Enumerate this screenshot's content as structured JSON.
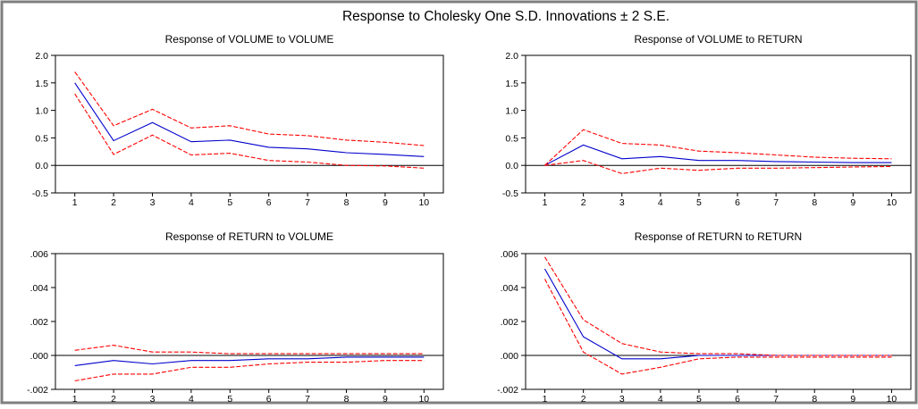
{
  "title": "Response to Cholesky One S.D. Innovations ± 2 S.E.",
  "colors": {
    "background": "#ffffff",
    "frame": "#7f7f7f",
    "response": "#0000cc",
    "bands": "#ff0000",
    "axis": "#000000"
  },
  "chart_data": [
    {
      "type": "line",
      "title": "Response of VOLUME to VOLUME",
      "x": [
        1,
        2,
        3,
        4,
        5,
        6,
        7,
        8,
        9,
        10
      ],
      "xticks": [
        "1",
        "2",
        "3",
        "4",
        "5",
        "6",
        "7",
        "8",
        "9",
        "10"
      ],
      "ylim": [
        -0.5,
        2.0
      ],
      "yticks": [
        -0.5,
        0.0,
        0.5,
        1.0,
        1.5,
        2.0
      ],
      "ytick_labels": [
        "-0.5",
        "0.0",
        "0.5",
        "1.0",
        "1.5",
        "2.0"
      ],
      "series": [
        {
          "role": "response",
          "values": [
            1.5,
            0.45,
            0.78,
            0.43,
            0.46,
            0.33,
            0.3,
            0.23,
            0.2,
            0.16
          ]
        },
        {
          "role": "upper",
          "values": [
            1.7,
            0.72,
            1.02,
            0.68,
            0.72,
            0.57,
            0.54,
            0.46,
            0.42,
            0.36
          ]
        },
        {
          "role": "lower",
          "values": [
            1.3,
            0.2,
            0.55,
            0.19,
            0.22,
            0.09,
            0.06,
            0.0,
            -0.01,
            -0.05
          ]
        }
      ]
    },
    {
      "type": "line",
      "title": "Response of VOLUME to RETURN",
      "x": [
        1,
        2,
        3,
        4,
        5,
        6,
        7,
        8,
        9,
        10
      ],
      "xticks": [
        "1",
        "2",
        "3",
        "4",
        "5",
        "6",
        "7",
        "8",
        "9",
        "10"
      ],
      "ylim": [
        -0.5,
        2.0
      ],
      "yticks": [
        -0.5,
        0.0,
        0.5,
        1.0,
        1.5,
        2.0
      ],
      "ytick_labels": [
        "-0.5",
        "0.0",
        "0.5",
        "1.0",
        "1.5",
        "2.0"
      ],
      "series": [
        {
          "role": "response",
          "values": [
            0.0,
            0.37,
            0.12,
            0.16,
            0.09,
            0.09,
            0.07,
            0.06,
            0.05,
            0.05
          ]
        },
        {
          "role": "upper",
          "values": [
            0.0,
            0.65,
            0.4,
            0.37,
            0.26,
            0.23,
            0.19,
            0.15,
            0.13,
            0.12
          ]
        },
        {
          "role": "lower",
          "values": [
            0.0,
            0.09,
            -0.15,
            -0.05,
            -0.09,
            -0.05,
            -0.05,
            -0.04,
            -0.03,
            -0.02
          ]
        }
      ]
    },
    {
      "type": "line",
      "title": "Response of RETURN to VOLUME",
      "x": [
        1,
        2,
        3,
        4,
        5,
        6,
        7,
        8,
        9,
        10
      ],
      "xticks": [
        "1",
        "2",
        "3",
        "4",
        "5",
        "6",
        "7",
        "8",
        "9",
        "10"
      ],
      "ylim": [
        -0.002,
        0.006
      ],
      "yticks": [
        -0.002,
        0.0,
        0.002,
        0.004,
        0.006
      ],
      "ytick_labels": [
        "-.002",
        ".000",
        ".002",
        ".004",
        ".006"
      ],
      "series": [
        {
          "role": "response",
          "values": [
            -0.0006,
            -0.0003,
            -0.0005,
            -0.0003,
            -0.0003,
            -0.0002,
            -0.0002,
            -0.0001,
            -0.0001,
            -0.0001
          ]
        },
        {
          "role": "upper",
          "values": [
            0.0003,
            0.0006,
            0.0002,
            0.0002,
            0.0001,
            0.0001,
            0.0001,
            0.0001,
            0.0001,
            0.0001
          ]
        },
        {
          "role": "lower",
          "values": [
            -0.0015,
            -0.0011,
            -0.0011,
            -0.0007,
            -0.0007,
            -0.0005,
            -0.0004,
            -0.0004,
            -0.0003,
            -0.0003
          ]
        }
      ]
    },
    {
      "type": "line",
      "title": "Response of RETURN to RETURN",
      "x": [
        1,
        2,
        3,
        4,
        5,
        6,
        7,
        8,
        9,
        10
      ],
      "xticks": [
        "1",
        "2",
        "3",
        "4",
        "5",
        "6",
        "7",
        "8",
        "9",
        "10"
      ],
      "ylim": [
        -0.002,
        0.006
      ],
      "yticks": [
        -0.002,
        0.0,
        0.002,
        0.004,
        0.006
      ],
      "ytick_labels": [
        "-.002",
        ".000",
        ".002",
        ".004",
        ".006"
      ],
      "series": [
        {
          "role": "response",
          "values": [
            0.0051,
            0.0011,
            -0.0002,
            -0.0002,
            0.0,
            0.0,
            0.0,
            0.0,
            0.0,
            0.0
          ]
        },
        {
          "role": "upper",
          "values": [
            0.0058,
            0.0021,
            0.0007,
            0.0002,
            0.0001,
            0.0001,
            0.0,
            0.0,
            0.0,
            0.0
          ]
        },
        {
          "role": "lower",
          "values": [
            0.0045,
            0.0002,
            -0.0011,
            -0.0007,
            -0.0002,
            -0.0001,
            -0.0001,
            -0.0001,
            -0.0001,
            -0.0001
          ]
        }
      ]
    }
  ]
}
